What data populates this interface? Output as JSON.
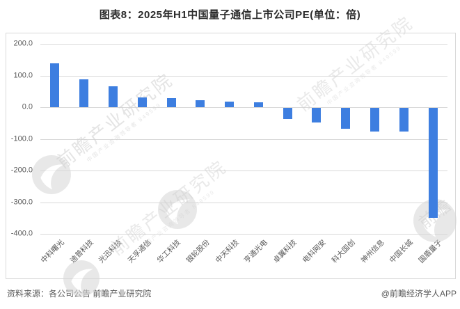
{
  "title": "图表8：2025年H1中国量子通信上市公司PE(单位：倍)",
  "chart_data": {
    "type": "bar",
    "title": "2025年H1中国量子通信上市公司PE",
    "unit": "倍",
    "categories": [
      "中科曙光",
      "迪普科技",
      "光迅科技",
      "天孚通信",
      "华工科技",
      "银轮股份",
      "中天科技",
      "亨通光电",
      "卓翼科技",
      "电科网安",
      "科大国创",
      "神州信息",
      "中国长城",
      "国盾量子"
    ],
    "values": [
      138,
      89,
      66,
      31,
      28,
      23,
      18,
      15,
      -35,
      -46,
      -67,
      -74,
      -75,
      -348
    ],
    "ylim": [
      -400,
      200
    ],
    "ytick_labels": [
      "200.0",
      "100.0",
      "0.0",
      "-100.0",
      "-200.0",
      "-300.0",
      "-400.0"
    ],
    "ytick_values": [
      200,
      100,
      0,
      -100,
      -200,
      -300,
      -400
    ],
    "xlabel": "",
    "ylabel": "",
    "legend_position": "none",
    "grid": "horizontal",
    "bar_color": "#3d7ee0",
    "gridline_color": "#d9d9d9",
    "axis_text_color": "#595959"
  },
  "watermark": {
    "brand": "前瞻产业研究院",
    "subtext": "中国产业咨询领导者 849599",
    "short": "前瞻"
  },
  "footer": {
    "source": "资料来源：各公司公告 前瞻产业研究院",
    "credit": "@前瞻经济学人APP"
  }
}
